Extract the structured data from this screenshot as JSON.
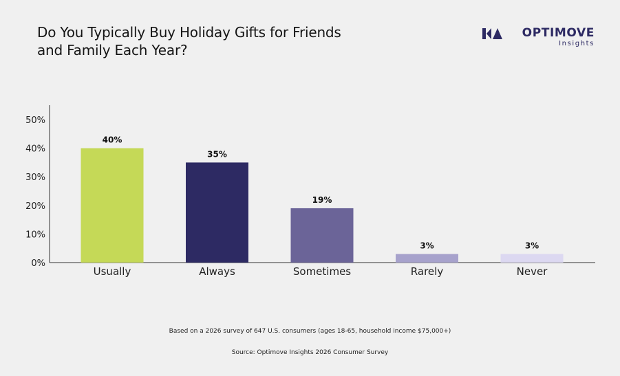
{
  "header": {
    "title_line1": "Do You Typically Buy Holiday Gifts for Friends",
    "title_line2": "and Family Each Year?"
  },
  "brand": {
    "name": "OPTIMOVE",
    "sub": "Insights",
    "color": "#2d2a63"
  },
  "chart_data": {
    "type": "bar",
    "title": "Do You Typically Buy Holiday Gifts for Friends and Family Each Year?",
    "categories": [
      "Usually",
      "Always",
      "Sometimes",
      "Rarely",
      "Never"
    ],
    "values": [
      40,
      35,
      19,
      3,
      3
    ],
    "value_labels": [
      "40%",
      "35%",
      "19%",
      "3%",
      "3%"
    ],
    "colors": [
      "#c5d957",
      "#2d2a63",
      "#6b6498",
      "#a7a2cc",
      "#dcd8f1"
    ],
    "ylim": [
      0,
      50
    ],
    "yticks": [
      0,
      10,
      20,
      30,
      40,
      50
    ],
    "ytick_labels": [
      "0%",
      "10%",
      "20%",
      "30%",
      "40%",
      "50%"
    ],
    "grid": false,
    "legend": "none"
  },
  "footer": {
    "note": "Based on a 2026 survey of 647 U.S. consumers (ages 18-65, household income $75,000+)",
    "source": "Source: Optimove Insights 2026 Consumer Survey"
  }
}
